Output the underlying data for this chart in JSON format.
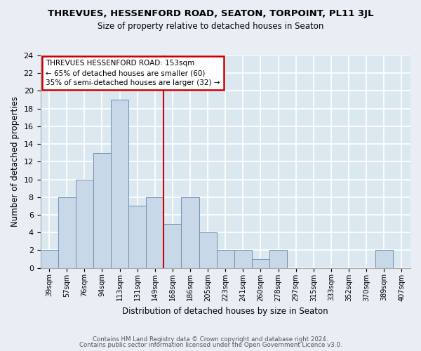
{
  "title": "THREVUES, HESSENFORD ROAD, SEATON, TORPOINT, PL11 3JL",
  "subtitle": "Size of property relative to detached houses in Seaton",
  "xlabel": "Distribution of detached houses by size in Seaton",
  "ylabel": "Number of detached properties",
  "bar_color": "#c8d8e8",
  "bar_edge_color": "#7090b0",
  "categories": [
    "39sqm",
    "57sqm",
    "76sqm",
    "94sqm",
    "113sqm",
    "131sqm",
    "149sqm",
    "168sqm",
    "186sqm",
    "205sqm",
    "223sqm",
    "241sqm",
    "260sqm",
    "278sqm",
    "297sqm",
    "315sqm",
    "333sqm",
    "352sqm",
    "370sqm",
    "389sqm",
    "407sqm"
  ],
  "values": [
    2,
    8,
    10,
    13,
    19,
    7,
    8,
    5,
    8,
    4,
    2,
    2,
    1,
    2,
    0,
    0,
    0,
    0,
    0,
    2,
    0
  ],
  "ylim": [
    0,
    24
  ],
  "yticks": [
    0,
    2,
    4,
    6,
    8,
    10,
    12,
    14,
    16,
    18,
    20,
    22,
    24
  ],
  "vline_x": 6.5,
  "vline_color": "#cc0000",
  "annotation_title": "THREVUES HESSENFORD ROAD: 153sqm",
  "annotation_line1": "← 65% of detached houses are smaller (60)",
  "annotation_line2": "35% of semi-detached houses are larger (32) →",
  "annotation_box_color": "#ffffff",
  "annotation_box_edge": "#cc0000",
  "footer1": "Contains HM Land Registry data © Crown copyright and database right 2024.",
  "footer2": "Contains public sector information licensed under the Open Government Licence v3.0.",
  "outer_bg": "#e8eef4",
  "plot_bg": "#dce8f0",
  "grid_color": "#ffffff"
}
